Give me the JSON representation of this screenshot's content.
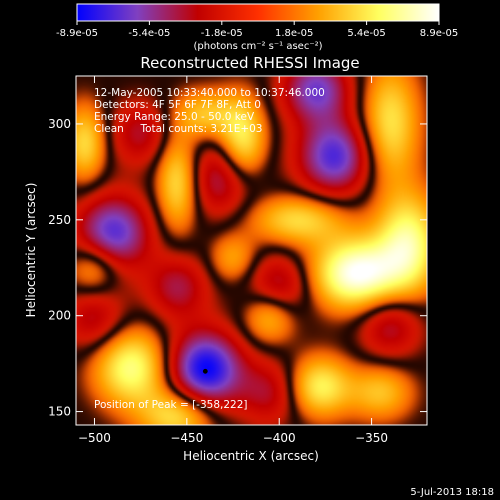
{
  "chart_data": {
    "type": "heatmap",
    "title": "Reconstructed RHESSI Image",
    "xlabel": "Heliocentric X (arcsec)",
    "ylabel": "Heliocentric Y (arcsec)",
    "xlim": [
      -510,
      -320
    ],
    "ylim": [
      143,
      325
    ],
    "xticks": [
      -500,
      -450,
      -400,
      -350
    ],
    "yticks": [
      150,
      200,
      250,
      300
    ],
    "colorbar": {
      "ticks": [
        "-8.9e-05",
        "-5.4e-05",
        "-1.8e-05",
        "1.8e-05",
        "5.4e-05",
        "8.9e-05"
      ],
      "min": -8.9e-05,
      "max": 8.9e-05,
      "unit_label": "(photons cm⁻² s⁻¹ asec⁻²)",
      "colors": [
        "#0000ff",
        "#8040c0",
        "#c00000",
        "#ff3000",
        "#ffa000",
        "#ffff60",
        "#ffffff"
      ]
    },
    "annotations": [
      "12-May-2005 10:33:40.000 to 10:37:46.000",
      "Detectors: 4F 5F 6F 7F 8F, Att 0",
      "Energy Range: 25.0 - 50.0 keV",
      "Clean     Total counts: 3.21E+03"
    ],
    "peak_label": "Position of Peak = [-358,222]",
    "marker": {
      "x": -440,
      "y": 171
    },
    "peak_position": [
      -358,
      222
    ],
    "blobs": [
      {
        "x": -440,
        "y": 172,
        "amp": -1.0,
        "sx": 14,
        "sy": 14
      },
      {
        "x": -490,
        "y": 243,
        "amp": -0.8,
        "sx": 14,
        "sy": 14
      },
      {
        "x": -370,
        "y": 283,
        "amp": -0.8,
        "sx": 14,
        "sy": 14
      },
      {
        "x": -380,
        "y": 318,
        "amp": -0.7,
        "sx": 13,
        "sy": 12
      },
      {
        "x": -430,
        "y": 272,
        "amp": -0.55,
        "sx": 13,
        "sy": 14
      },
      {
        "x": -455,
        "y": 215,
        "amp": -0.45,
        "sx": 12,
        "sy": 12
      },
      {
        "x": -400,
        "y": 215,
        "amp": -0.5,
        "sx": 12,
        "sy": 12
      },
      {
        "x": -340,
        "y": 195,
        "amp": -0.45,
        "sx": 12,
        "sy": 12
      },
      {
        "x": -500,
        "y": 198,
        "amp": -0.4,
        "sx": 12,
        "sy": 12
      },
      {
        "x": -405,
        "y": 160,
        "amp": -0.4,
        "sx": 12,
        "sy": 12
      },
      {
        "x": -475,
        "y": 295,
        "amp": -0.4,
        "sx": 12,
        "sy": 12
      },
      {
        "x": -358,
        "y": 222,
        "amp": 1.0,
        "sx": 17,
        "sy": 13
      },
      {
        "x": -330,
        "y": 238,
        "amp": 0.75,
        "sx": 12,
        "sy": 18
      },
      {
        "x": -340,
        "y": 300,
        "amp": 0.6,
        "sx": 11,
        "sy": 22
      },
      {
        "x": -420,
        "y": 290,
        "amp": 0.7,
        "sx": 9,
        "sy": 16
      },
      {
        "x": -455,
        "y": 270,
        "amp": 0.6,
        "sx": 8,
        "sy": 18
      },
      {
        "x": -390,
        "y": 250,
        "amp": 0.55,
        "sx": 18,
        "sy": 9
      },
      {
        "x": -480,
        "y": 173,
        "amp": 0.75,
        "sx": 14,
        "sy": 14
      },
      {
        "x": -455,
        "y": 148,
        "amp": 0.6,
        "sx": 14,
        "sy": 10
      },
      {
        "x": -378,
        "y": 163,
        "amp": 0.65,
        "sx": 12,
        "sy": 11
      },
      {
        "x": -505,
        "y": 290,
        "amp": 0.55,
        "sx": 8,
        "sy": 14
      },
      {
        "x": -440,
        "y": 305,
        "amp": 0.45,
        "sx": 12,
        "sy": 9
      },
      {
        "x": -405,
        "y": 200,
        "amp": 0.5,
        "sx": 10,
        "sy": 10
      },
      {
        "x": -500,
        "y": 225,
        "amp": 0.45,
        "sx": 10,
        "sy": 10
      },
      {
        "x": -425,
        "y": 230,
        "amp": 0.35,
        "sx": 9,
        "sy": 9
      },
      {
        "x": -345,
        "y": 160,
        "amp": 0.45,
        "sx": 12,
        "sy": 10
      }
    ]
  },
  "footer": {
    "timestamp": "5-Jul-2013 18:18"
  }
}
